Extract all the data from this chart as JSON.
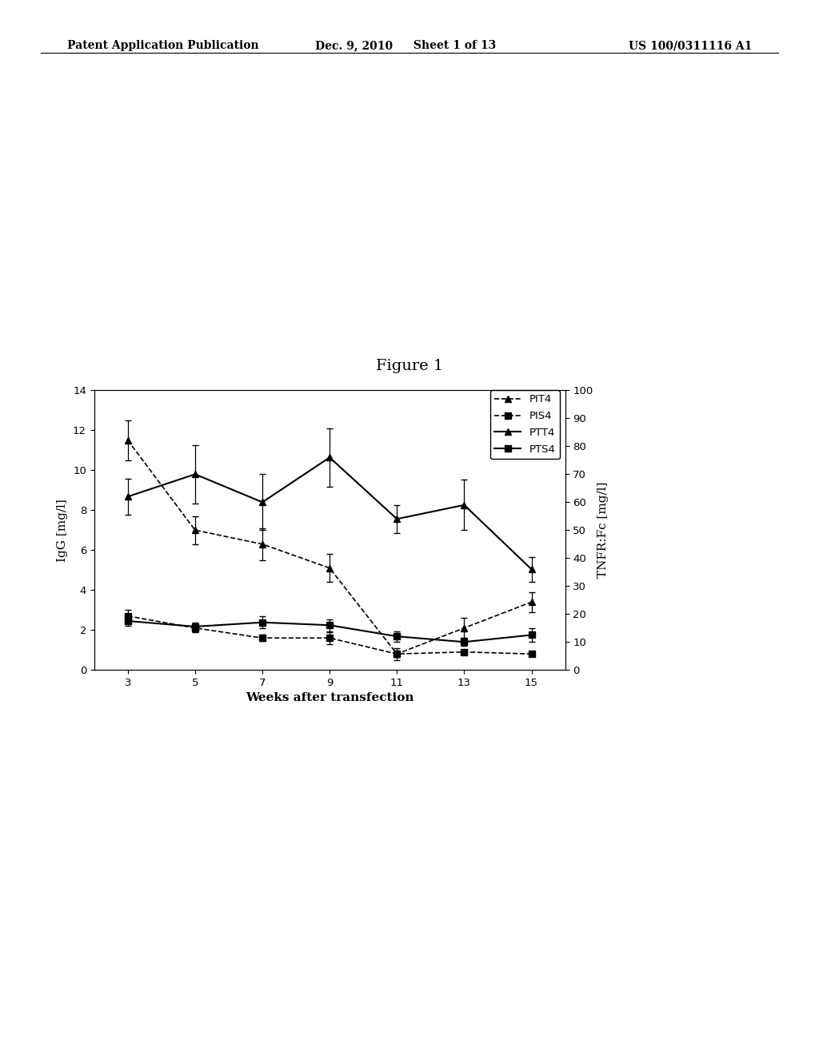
{
  "title": "Figure 1",
  "xlabel": "Weeks after transfection",
  "ylabel_left": "IgG [mg/l]",
  "ylabel_right": "TNFR:Fc [mg/l]",
  "x": [
    3,
    5,
    7,
    9,
    11,
    13,
    15
  ],
  "PIT4_y": [
    11.5,
    7.0,
    6.3,
    5.1,
    0.8,
    2.1,
    3.4
  ],
  "PIT4_err": [
    1.0,
    0.7,
    0.8,
    0.7,
    0.3,
    0.5,
    0.5
  ],
  "PIS4_y": [
    2.7,
    2.1,
    1.6,
    1.6,
    0.8,
    0.9,
    0.8
  ],
  "PIS4_err": [
    0.3,
    0.2,
    0.15,
    0.3,
    0.15,
    0.1,
    0.1
  ],
  "PTT4_y": [
    62,
    70,
    60,
    76,
    54,
    59,
    36
  ],
  "PTT4_err": [
    6.5,
    10.5,
    10.0,
    10.5,
    5.0,
    9.0,
    4.5
  ],
  "PTS4_y": [
    17.5,
    15.5,
    17.0,
    16.0,
    12.0,
    10.0,
    12.5
  ],
  "PTS4_err": [
    1.8,
    1.4,
    2.1,
    2.1,
    1.8,
    1.4,
    2.5
  ],
  "ylim_left": [
    0,
    14
  ],
  "ylim_right": [
    0,
    100
  ],
  "yticks_left": [
    0,
    2,
    4,
    6,
    8,
    10,
    12,
    14
  ],
  "yticks_right": [
    0,
    10,
    20,
    30,
    40,
    50,
    60,
    70,
    80,
    90,
    100
  ],
  "background_color": "#ffffff",
  "header_left": "Patent Application Publication",
  "header_mid": "Dec. 9, 2010",
  "header_sheet": "Sheet 1 of 13",
  "header_right": "US 100/0311116 A1"
}
